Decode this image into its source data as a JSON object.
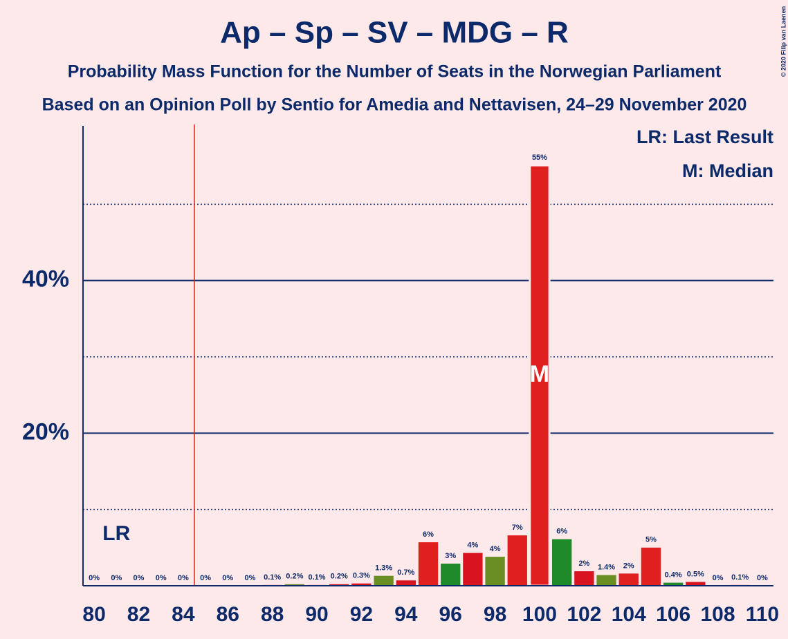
{
  "chart_data": {
    "type": "bar",
    "title": "Ap – Sp – SV – MDG – R",
    "subtitle": "Probability Mass Function for the Number of Seats in the Norwegian Parliament",
    "subtitle2": "Based on an Opinion Poll by Sentio for Amedia and Nettavisen, 24–29 November 2020",
    "copyright": "© 2020 Filip van Laenen",
    "legend_lines": [
      "LR: Last Result",
      "M: Median"
    ],
    "last_result": 84.5,
    "last_result_label": "LR",
    "median": 100,
    "median_label": "M",
    "x": [
      80,
      81,
      82,
      83,
      84,
      85,
      86,
      87,
      88,
      89,
      90,
      91,
      92,
      93,
      94,
      95,
      96,
      97,
      98,
      99,
      100,
      101,
      102,
      103,
      104,
      105,
      106,
      107,
      108,
      109,
      110
    ],
    "values": [
      0,
      0,
      0,
      0,
      0,
      0,
      0,
      0,
      0.1,
      0.2,
      0.1,
      0.2,
      0.3,
      1.3,
      0.7,
      5.7,
      2.9,
      4.3,
      3.8,
      6.6,
      55.1,
      6.1,
      1.9,
      1.4,
      1.6,
      5.0,
      0.4,
      0.5,
      0,
      0.1,
      0
    ],
    "value_labels": [
      "0%",
      "0%",
      "0%",
      "0%",
      "0%",
      "0%",
      "0%",
      "0%",
      "0.1%",
      "0.2%",
      "0.1%",
      "0.2%",
      "0.3%",
      "1.3%",
      "0.7%",
      "6%",
      "3%",
      "4%",
      "4%",
      "7%",
      "55%",
      "6%",
      "2%",
      "1.4%",
      "2%",
      "5%",
      "0.4%",
      "0.5%",
      "0%",
      "0.1%",
      "0%"
    ],
    "colors": [
      "#d7141f",
      "#d7141f",
      "#1f8a2a",
      "#d7141f",
      "#6b8e23",
      "#d7141f",
      "#d7141f",
      "#1f8a2a",
      "#d7141f",
      "#6b8e23",
      "#d7141f",
      "#d7141f",
      "#d7141f",
      "#6b8e23",
      "#d7141f",
      "#e0201f",
      "#1f8a2a",
      "#d7141f",
      "#6b8e23",
      "#e0201f",
      "#e0201f",
      "#1f8a2a",
      "#d7141f",
      "#6b8e23",
      "#e0201f",
      "#e0201f",
      "#1f8a2a",
      "#d7141f",
      "#6b8e23",
      "#e0201f",
      "#e0201f"
    ],
    "xlim": [
      79.5,
      110.5
    ],
    "xticks": [
      80,
      82,
      84,
      86,
      88,
      90,
      92,
      94,
      96,
      98,
      100,
      102,
      104,
      106,
      108,
      110
    ],
    "ylim": [
      0,
      60
    ],
    "yticks": [
      {
        "value": 20,
        "label": "20%"
      },
      {
        "value": 40,
        "label": "40%"
      }
    ],
    "minor_yticks": [
      10,
      30,
      50
    ],
    "grid": true
  }
}
